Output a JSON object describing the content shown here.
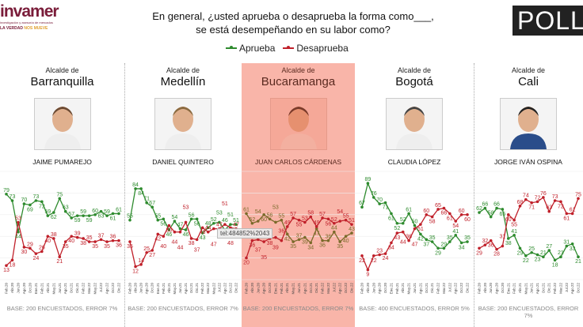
{
  "logo_left": {
    "brand": "invamer",
    "tagline": "investigación y asesoría de mercados",
    "slogan_a": "LA VERDAD",
    "slogan_b": "NOS MUEVE"
  },
  "logo_right": {
    "text": "POLL"
  },
  "question": {
    "line1": "En general, ¿usted aprueba o desaprueba la forma como___,",
    "line2": "se está desempeñando en su labor como?"
  },
  "legend": {
    "approve": "Aprueba",
    "disapprove": "Desaprueba"
  },
  "colors": {
    "approve": "#2e8b2e",
    "disapprove": "#c0202a",
    "approve_highlight": "#7a6a2a",
    "highlight_bg": "#f9b5a9"
  },
  "tooltip": "tel:484852%2043",
  "chart_data": [
    {
      "type": "line",
      "title": "Alcalde de Barranquilla",
      "name": "JAIME PUMAREJO",
      "base": "BASE: 200 ENCUESTADOS, ERROR 7%",
      "ylim": [
        0,
        100
      ],
      "categories": [
        "Feb.20",
        "Abr.20",
        "Jun.20",
        "Ago.20",
        "Oct.20",
        "Ene.21",
        "Feb.21",
        "Abr.21",
        "May.21",
        "Jun.21",
        "Ago.21",
        "Oct.21",
        "Dic.21",
        "Feb.22",
        "Mar.22",
        "May.22",
        "Jul.22",
        "Ago.22",
        "Oct.22",
        "Dic.22"
      ],
      "series": [
        {
          "name": "Aprueba",
          "values": [
            79,
            73,
            44,
            70,
            69,
            73,
            72,
            59,
            62,
            75,
            63,
            57,
            59,
            59,
            59,
            60,
            63,
            59,
            61,
            61
          ]
        },
        {
          "name": "Desaprueba",
          "values": [
            13,
            18,
            53,
            30,
            29,
            24,
            26,
            40,
            38,
            21,
            35,
            40,
            39,
            38,
            35,
            35,
            37,
            35,
            36,
            36
          ]
        }
      ]
    },
    {
      "type": "line",
      "title": "Alcalde de Medellín",
      "name": "DANIEL QUINTERO",
      "base": "BASE: 200 ENCUESTADOS, ERROR 7%",
      "ylim": [
        0,
        100
      ],
      "categories": [
        "Feb.20",
        "Abr.20",
        "Jun.20",
        "Ago.20",
        "Oct.20",
        "Ene.21",
        "Feb.21",
        "Abr.21",
        "May.21",
        "Jun.21",
        "Ago.21",
        "Oct.21",
        "Dic.21",
        "Feb.22",
        "Mar.22",
        "May.22",
        "Jul.22",
        "Ago.22",
        "Oct.22",
        "Dic.22"
      ],
      "series": [
        {
          "name": "Aprueba",
          "values": [
            55,
            84,
            84,
            71,
            67,
            55,
            56,
            46,
            54,
            47,
            46,
            56,
            56,
            43,
            48,
            52,
            53,
            46,
            51,
            51
          ]
        },
        {
          "name": "Desaprueba",
          "values": [
            35,
            12,
            14,
            25,
            27,
            42,
            40,
            50,
            44,
            44,
            53,
            38,
            37,
            48,
            44,
            47,
            47,
            51,
            48,
            47
          ]
        }
      ]
    },
    {
      "type": "line",
      "title": "Alcalde de Bucaramanga",
      "name": "JUAN CARLOS CÁRDENAS",
      "base": "BASE: 200 ENCUESTADOS, ERROR 7%",
      "ylim": [
        0,
        100
      ],
      "categories": [
        "Feb.20",
        "Abr.20",
        "Jun.20",
        "Ago.20",
        "Oct.20",
        "Ene.21",
        "Feb.21",
        "Abr.21",
        "May.21",
        "Jun.21",
        "Ago.21",
        "Oct.21",
        "Dic.21",
        "Feb.22",
        "Mar.22",
        "Jul.22",
        "Ago.22",
        "Oct.22",
        "Dic.22"
      ],
      "series": [
        {
          "name": "Aprueba",
          "values": [
            61,
            52,
            54,
            60,
            56,
            53,
            55,
            42,
            35,
            37,
            39,
            34,
            47,
            36,
            36,
            44,
            35,
            40,
            43
          ]
        },
        {
          "name": "Desaprueba",
          "values": [
            20,
            36,
            37,
            35,
            38,
            39,
            36,
            49,
            57,
            55,
            53,
            58,
            49,
            57,
            56,
            52,
            54,
            55,
            51
          ]
        }
      ]
    },
    {
      "type": "line",
      "title": "Alcalde de Bogotá",
      "name": "CLAUDIA LÓPEZ",
      "base": "BASE: 400 ENCUESTADOS, ERROR 5%",
      "ylim": [
        0,
        100
      ],
      "categories": [
        "Feb.20",
        "Abr.20",
        "Jun.20",
        "Ago.20",
        "Oct.20",
        "Ene.21",
        "Feb.21",
        "Abr.21",
        "May.21",
        "Jun.21",
        "Ago.21",
        "Oct.21",
        "Dic.21",
        "Feb.22",
        "Mar.22",
        "Jul.22",
        "Ago.22",
        "Oct.22",
        "Dic.22"
      ],
      "series": [
        {
          "name": "Aprueba",
          "values": [
            67,
            89,
            76,
            70,
            71,
            61,
            52,
            52,
            61,
            50,
            42,
            37,
            35,
            29,
            29,
            35,
            41,
            34,
            35
          ]
        },
        {
          "name": "Desaprueba",
          "values": [
            22,
            9,
            22,
            23,
            24,
            34,
            43,
            44,
            36,
            47,
            51,
            60,
            58,
            65,
            66,
            61,
            54,
            60,
            60
          ]
        }
      ]
    },
    {
      "type": "line",
      "title": "Alcalde de Cali",
      "name": "JORGE IVÁN OSPINA",
      "base": "BASE: 200 ENCUESTADOS, ERROR 7%",
      "ylim": [
        0,
        100
      ],
      "categories": [
        "Feb.20",
        "Abr.20",
        "Jun.20",
        "Ago.20",
        "Oct.20",
        "Ene.21",
        "Feb.21",
        "Abr.21",
        "May.21",
        "Jun.21",
        "Ago.21",
        "Oct.21",
        "Dic.21",
        "Feb.22",
        "Mar.22",
        "Jul.22",
        "Ago.22",
        "Oct.22"
      ],
      "series": [
        {
          "name": "Aprueba",
          "values": [
            62,
            66,
            58,
            66,
            65,
            38,
            41,
            29,
            22,
            25,
            23,
            21,
            27,
            18,
            21,
            31,
            33,
            21
          ]
        },
        {
          "name": "Desaprueba",
          "values": [
            29,
            32,
            36,
            28,
            31,
            60,
            55,
            68,
            74,
            71,
            72,
            76,
            63,
            73,
            72,
            61,
            61,
            75
          ]
        }
      ]
    }
  ],
  "panels": [
    {
      "pre": "Alcalde de",
      "city": "Barranquilla",
      "name": "JAIME PUMAREJO"
    },
    {
      "pre": "Alcalde de",
      "city": "Medellín",
      "name": "DANIEL QUINTERO"
    },
    {
      "pre": "Alcalde de",
      "city": "Bucaramanga",
      "name": "JUAN CARLOS CÁRDENAS"
    },
    {
      "pre": "Alcalde de",
      "city": "Bogotá",
      "name": "CLAUDIA LÓPEZ"
    },
    {
      "pre": "Alcalde de",
      "city": "Cali",
      "name": "JORGE IVÁN OSPINA"
    }
  ]
}
